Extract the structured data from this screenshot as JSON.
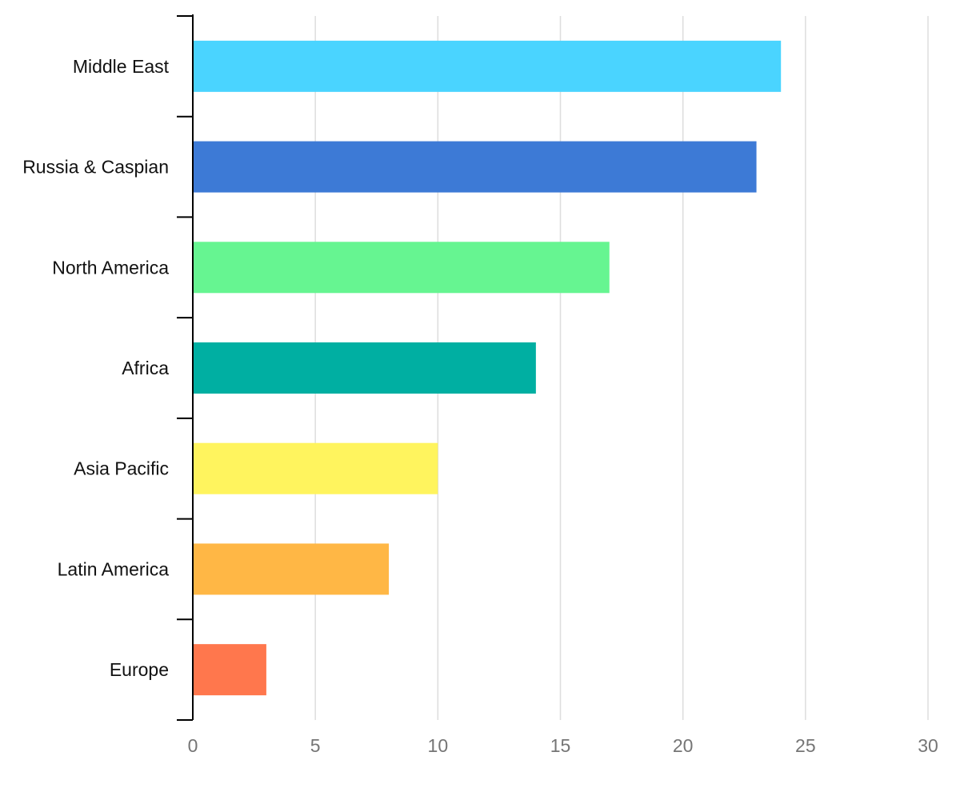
{
  "chart_data": {
    "type": "bar",
    "orientation": "horizontal",
    "title": "",
    "xlabel": "",
    "ylabel": "",
    "categories": [
      "Middle East",
      "Russia & Caspian",
      "North America",
      "Africa",
      "Asia Pacific",
      "Latin America",
      "Europe"
    ],
    "values": [
      24,
      23,
      17,
      14,
      10,
      8,
      3
    ],
    "colors": [
      "#4AD4FF",
      "#3D7AD6",
      "#66F591",
      "#00AFA2",
      "#FFF45E",
      "#FFB745",
      "#FF774D"
    ],
    "xlim": [
      0,
      30
    ],
    "x_ticks": [
      0,
      5,
      10,
      15,
      20,
      25,
      30
    ],
    "grid": "vertical",
    "legend": "none"
  }
}
